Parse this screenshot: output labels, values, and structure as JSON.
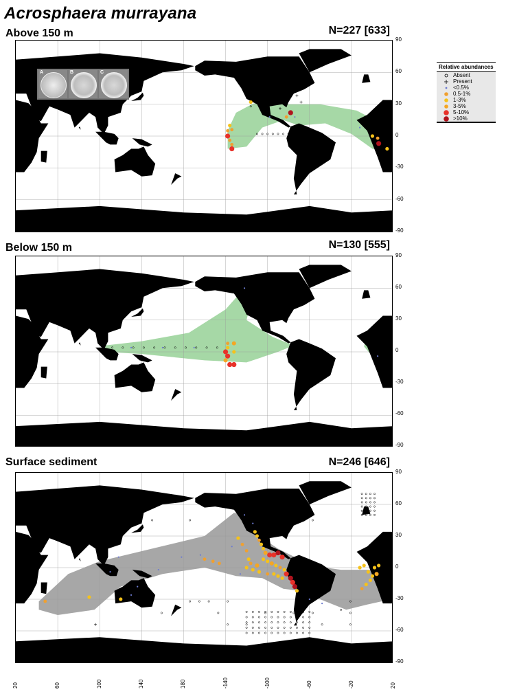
{
  "title": "Acrosphaera murrayana",
  "panels": [
    {
      "title": "Above 150 m",
      "n": "N=227 [633]"
    },
    {
      "title": "Below 150 m",
      "n": "N=130 [555]"
    },
    {
      "title": "Surface sediment",
      "n": "N=246 [646]"
    }
  ],
  "inset_labels": [
    "A",
    "B",
    "C"
  ],
  "lat_ticks": [
    "90",
    "60",
    "30",
    "0",
    "-30",
    "-60",
    "-90"
  ],
  "lon_ticks": [
    "20",
    "60",
    "100",
    "140",
    "180",
    "-140",
    "-100",
    "-60",
    "-20",
    "20"
  ],
  "legend": {
    "title": "Relative abundances",
    "items": [
      {
        "label": "Absent",
        "symbol": "open-circle",
        "color": "#000000"
      },
      {
        "label": "Present",
        "symbol": "plus",
        "color": "#000000"
      },
      {
        "label": "<0.5%",
        "symbol": "dot-small",
        "color": "#6c7ad0"
      },
      {
        "label": "0.5-1%",
        "symbol": "dot",
        "color": "#f0a030"
      },
      {
        "label": "1-3%",
        "symbol": "dot",
        "color": "#f6c21a"
      },
      {
        "label": "3-5%",
        "symbol": "dot",
        "color": "#f5a623"
      },
      {
        "label": "5-10%",
        "symbol": "dot-large",
        "color": "#e8322a"
      },
      {
        "label": ">10%",
        "symbol": "dot-large",
        "color": "#b0131d"
      }
    ]
  },
  "colors": {
    "land": "#000000",
    "range_green": "#a6d8a6",
    "range_grey": "#a7a7a7",
    "grid": "#9a9a9a"
  }
}
